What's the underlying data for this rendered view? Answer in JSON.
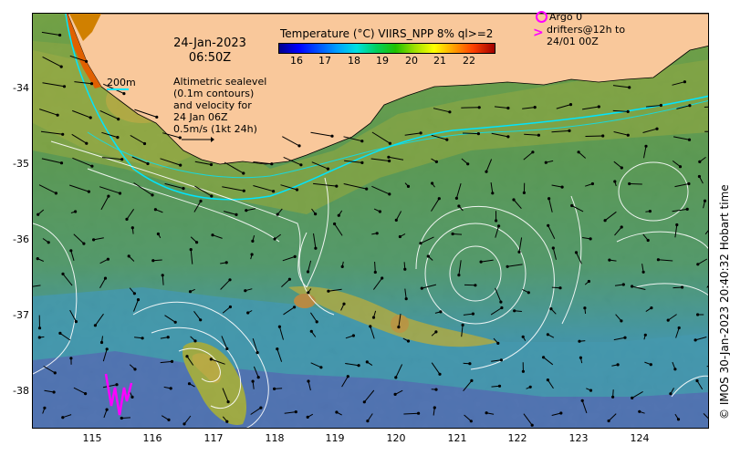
{
  "header": {
    "date": "24-Jan-2023",
    "time": "06:50Z"
  },
  "colorbar": {
    "title": "Temperature (°C) VIIRS_NPP 8% ql>=2",
    "ticks": [
      "16",
      "17",
      "18",
      "19",
      "20",
      "21",
      "22"
    ]
  },
  "legend": {
    "argo": "Argo 0",
    "drifters_line1": "drifters@12h to",
    "drifters_line2": "24/01 00Z",
    "isobath": "200m",
    "altimetry_line1": "Altimetric sealevel",
    "altimetry_line2": "(0.1m contours)",
    "altimetry_line3": "and velocity for",
    "altimetry_line4": "24 Jan 06Z",
    "altimetry_line5": "0.5m/s (1kt 24h)"
  },
  "axes": {
    "lat_labels": [
      "-34",
      "-35",
      "-36",
      "-37",
      "-38"
    ],
    "lon_labels": [
      "115",
      "116",
      "117",
      "118",
      "119",
      "120",
      "121",
      "122",
      "123",
      "124"
    ]
  },
  "credit": "© IMOS 30-Jan-2023 20:40:32 Hobart time",
  "colors": {
    "land": "#f9c89b",
    "isobath": "#00e5ff",
    "drifter": "#ff00ff",
    "contour": "#ffffff"
  }
}
